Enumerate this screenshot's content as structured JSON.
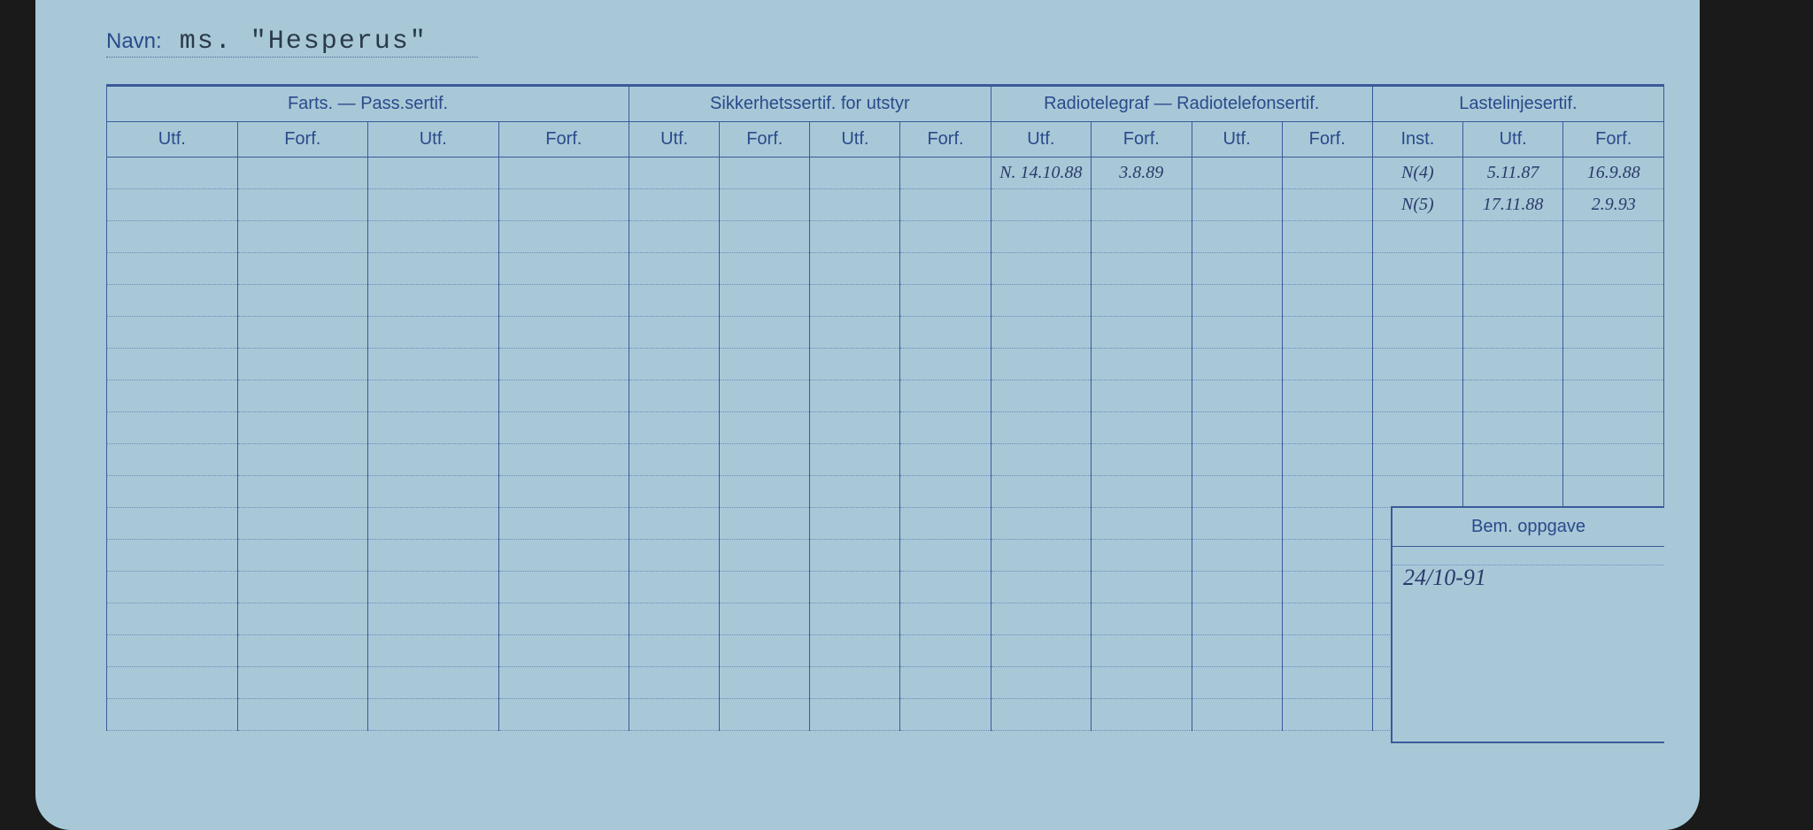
{
  "card": {
    "name_label": "Navn:",
    "name_value": "ms. \"Hesperus\"",
    "background_color": "#a8c8d8",
    "line_color": "#3a5a9a",
    "dot_color": "#6a8aba",
    "text_color": "#2a4a8a",
    "ink_color": "#2a3a6a"
  },
  "groups": [
    {
      "title": "Farts. — Pass.sertif.",
      "subcols": [
        "Utf.",
        "Forf.",
        "Utf.",
        "Forf."
      ]
    },
    {
      "title": "Sikkerhetssertif. for utstyr",
      "subcols": [
        "Utf.",
        "Forf.",
        "Utf.",
        "Forf."
      ]
    },
    {
      "title": "Radiotelegraf — Radiotelefonsertif.",
      "subcols": [
        "Utf.",
        "Forf.",
        "Utf.",
        "Forf."
      ]
    },
    {
      "title": "Lastelinjesertif.",
      "subcols": [
        "Inst.",
        "Utf.",
        "Forf."
      ]
    }
  ],
  "row_count": 18,
  "entries": {
    "row0": {
      "c8": "N. 14.10.88",
      "c9": "3.8.89",
      "c12": "N(4)",
      "c13": "5.11.87",
      "c14": "16.9.88"
    },
    "row1": {
      "c12": "N(5)",
      "c13": "17.11.88",
      "c14": "2.9.93"
    }
  },
  "bem": {
    "header": "Bem. oppgave",
    "value": "24/10-91"
  },
  "holes": {
    "count": 10
  }
}
